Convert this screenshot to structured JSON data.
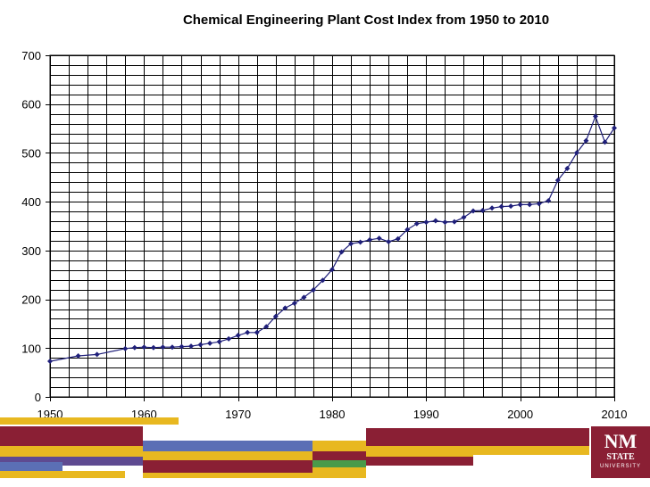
{
  "chart_data": {
    "type": "line",
    "title": "Chemical Engineering Plant Cost Index from 1950 to 2010",
    "xlabel": "",
    "ylabel": "",
    "xlim": [
      1950,
      2010
    ],
    "ylim": [
      0,
      700
    ],
    "x_ticks": [
      "1950",
      "1960",
      "1970",
      "1980",
      "1990",
      "2000",
      "2010"
    ],
    "y_ticks": [
      "0",
      "100",
      "200",
      "300",
      "400",
      "500",
      "600",
      "700"
    ],
    "grid": true,
    "series": [
      {
        "color": "#1f1f7a",
        "x": [
          1950,
          1953,
          1955,
          1958,
          1959,
          1960,
          1961,
          1962,
          1963,
          1964,
          1965,
          1966,
          1967,
          1968,
          1969,
          1970,
          1971,
          1972,
          1973,
          1974,
          1975,
          1976,
          1977,
          1978,
          1979,
          1980,
          1981,
          1982,
          1983,
          1984,
          1985,
          1986,
          1987,
          1988,
          1989,
          1990,
          1991,
          1992,
          1993,
          1994,
          1995,
          1996,
          1997,
          1998,
          1999,
          2000,
          2001,
          2002,
          2003,
          2004,
          2005,
          2006,
          2007,
          2008,
          2009,
          2010
        ],
        "y": [
          73,
          84,
          87,
          99,
          101,
          102,
          101,
          102,
          102,
          103,
          104,
          107,
          110,
          113,
          119,
          126,
          132,
          132,
          144,
          165,
          182,
          192,
          204,
          219,
          239,
          261,
          297,
          314,
          317,
          322,
          325,
          318,
          324,
          343,
          355,
          358,
          361,
          358,
          359,
          368,
          381,
          382,
          387,
          390,
          391,
          394,
          394,
          396,
          402,
          444,
          468,
          500,
          525,
          575,
          522,
          551
        ]
      }
    ]
  },
  "footer": {
    "logo_text_top": "NM",
    "logo_text_bottom": "STATE",
    "logo_text_sub": "UNIVERSITY",
    "colors": {
      "maroon": "#8a1f34",
      "gold": "#e8b820",
      "purple": "#5e4a91",
      "blue": "#5b6fb5",
      "green": "#4a9a4a"
    }
  }
}
